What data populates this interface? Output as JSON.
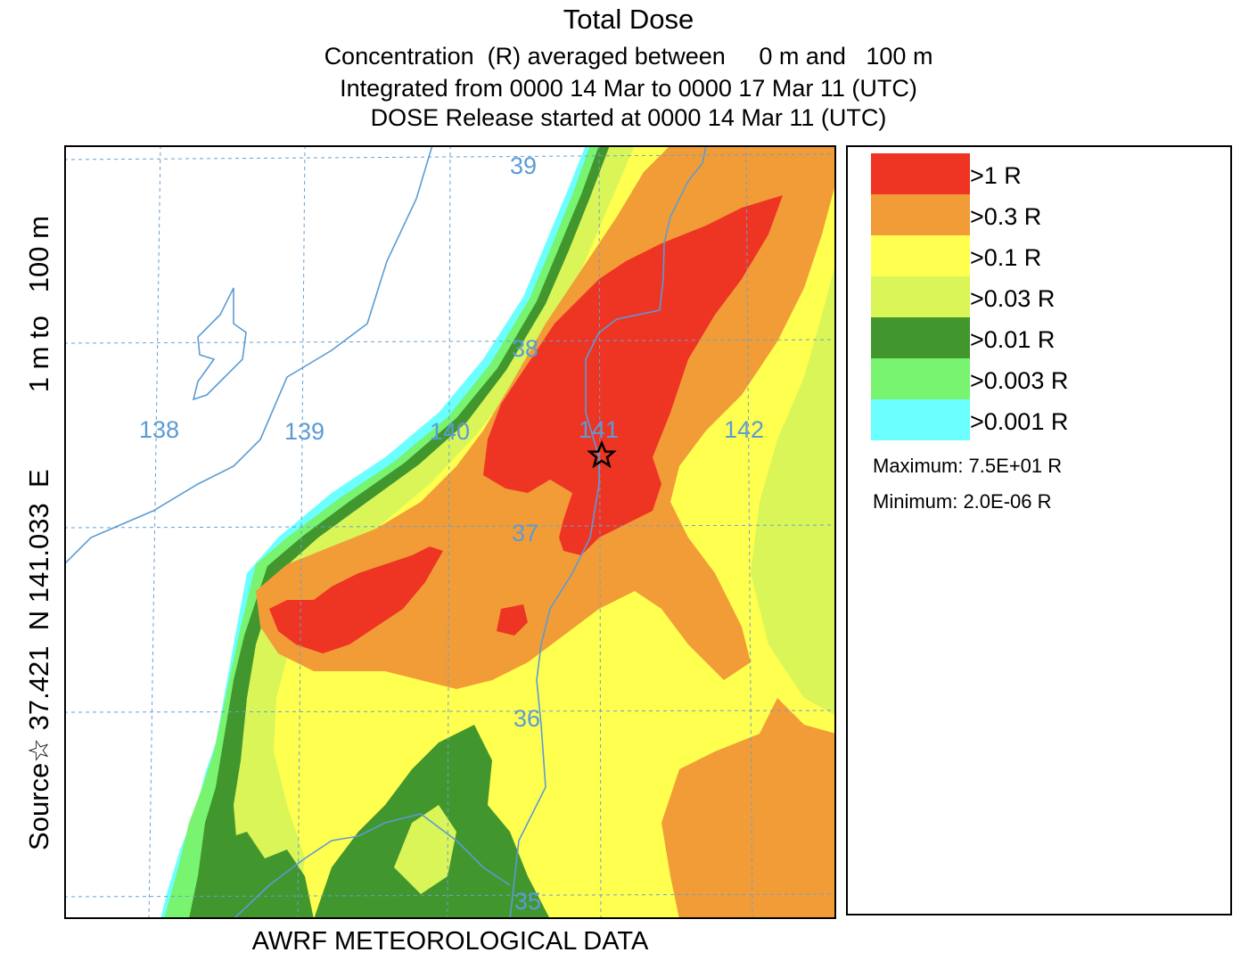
{
  "titles": {
    "main": "Total Dose",
    "line1": "Concentration  (R) averaged between     0 m and   100 m",
    "line2": "Integrated from 0000 14 Mar to 0000 17 Mar 11 (UTC)",
    "line3": "DOSE Release started at 0000 14 Mar 11 (UTC)"
  },
  "side_label": "Source☆ 37.421  N 141.033  E          1 m to   100 m",
  "footer": "AWRF METEOROLOGICAL DATA",
  "map": {
    "lon_labels": [
      "138",
      "139",
      "140",
      "141",
      "142"
    ],
    "lat_labels": [
      "39",
      "38",
      "37",
      "36",
      "35"
    ],
    "source_marker": "star-icon",
    "colors": {
      "background": "#ffff55",
      "coast": "#5b9bd5",
      "grid": "#6aa0d0",
      "label": "#5b9bd5"
    }
  },
  "legend": {
    "items": [
      {
        "label": ">1 R",
        "color": "#ee3524"
      },
      {
        "label": ">0.3 R",
        "color": "#f29c38"
      },
      {
        "label": ">0.1 R",
        "color": "#ffff50"
      },
      {
        "label": ">0.03 R",
        "color": "#d9f558"
      },
      {
        "label": ">0.01 R",
        "color": "#42962e"
      },
      {
        "label": ">0.003 R",
        "color": "#78f470"
      },
      {
        "label": ">0.001 R",
        "color": "#6bffff"
      }
    ],
    "maximum": "Maximum: 7.5E+01 R",
    "minimum": "Minimum: 2.0E-06 R"
  }
}
